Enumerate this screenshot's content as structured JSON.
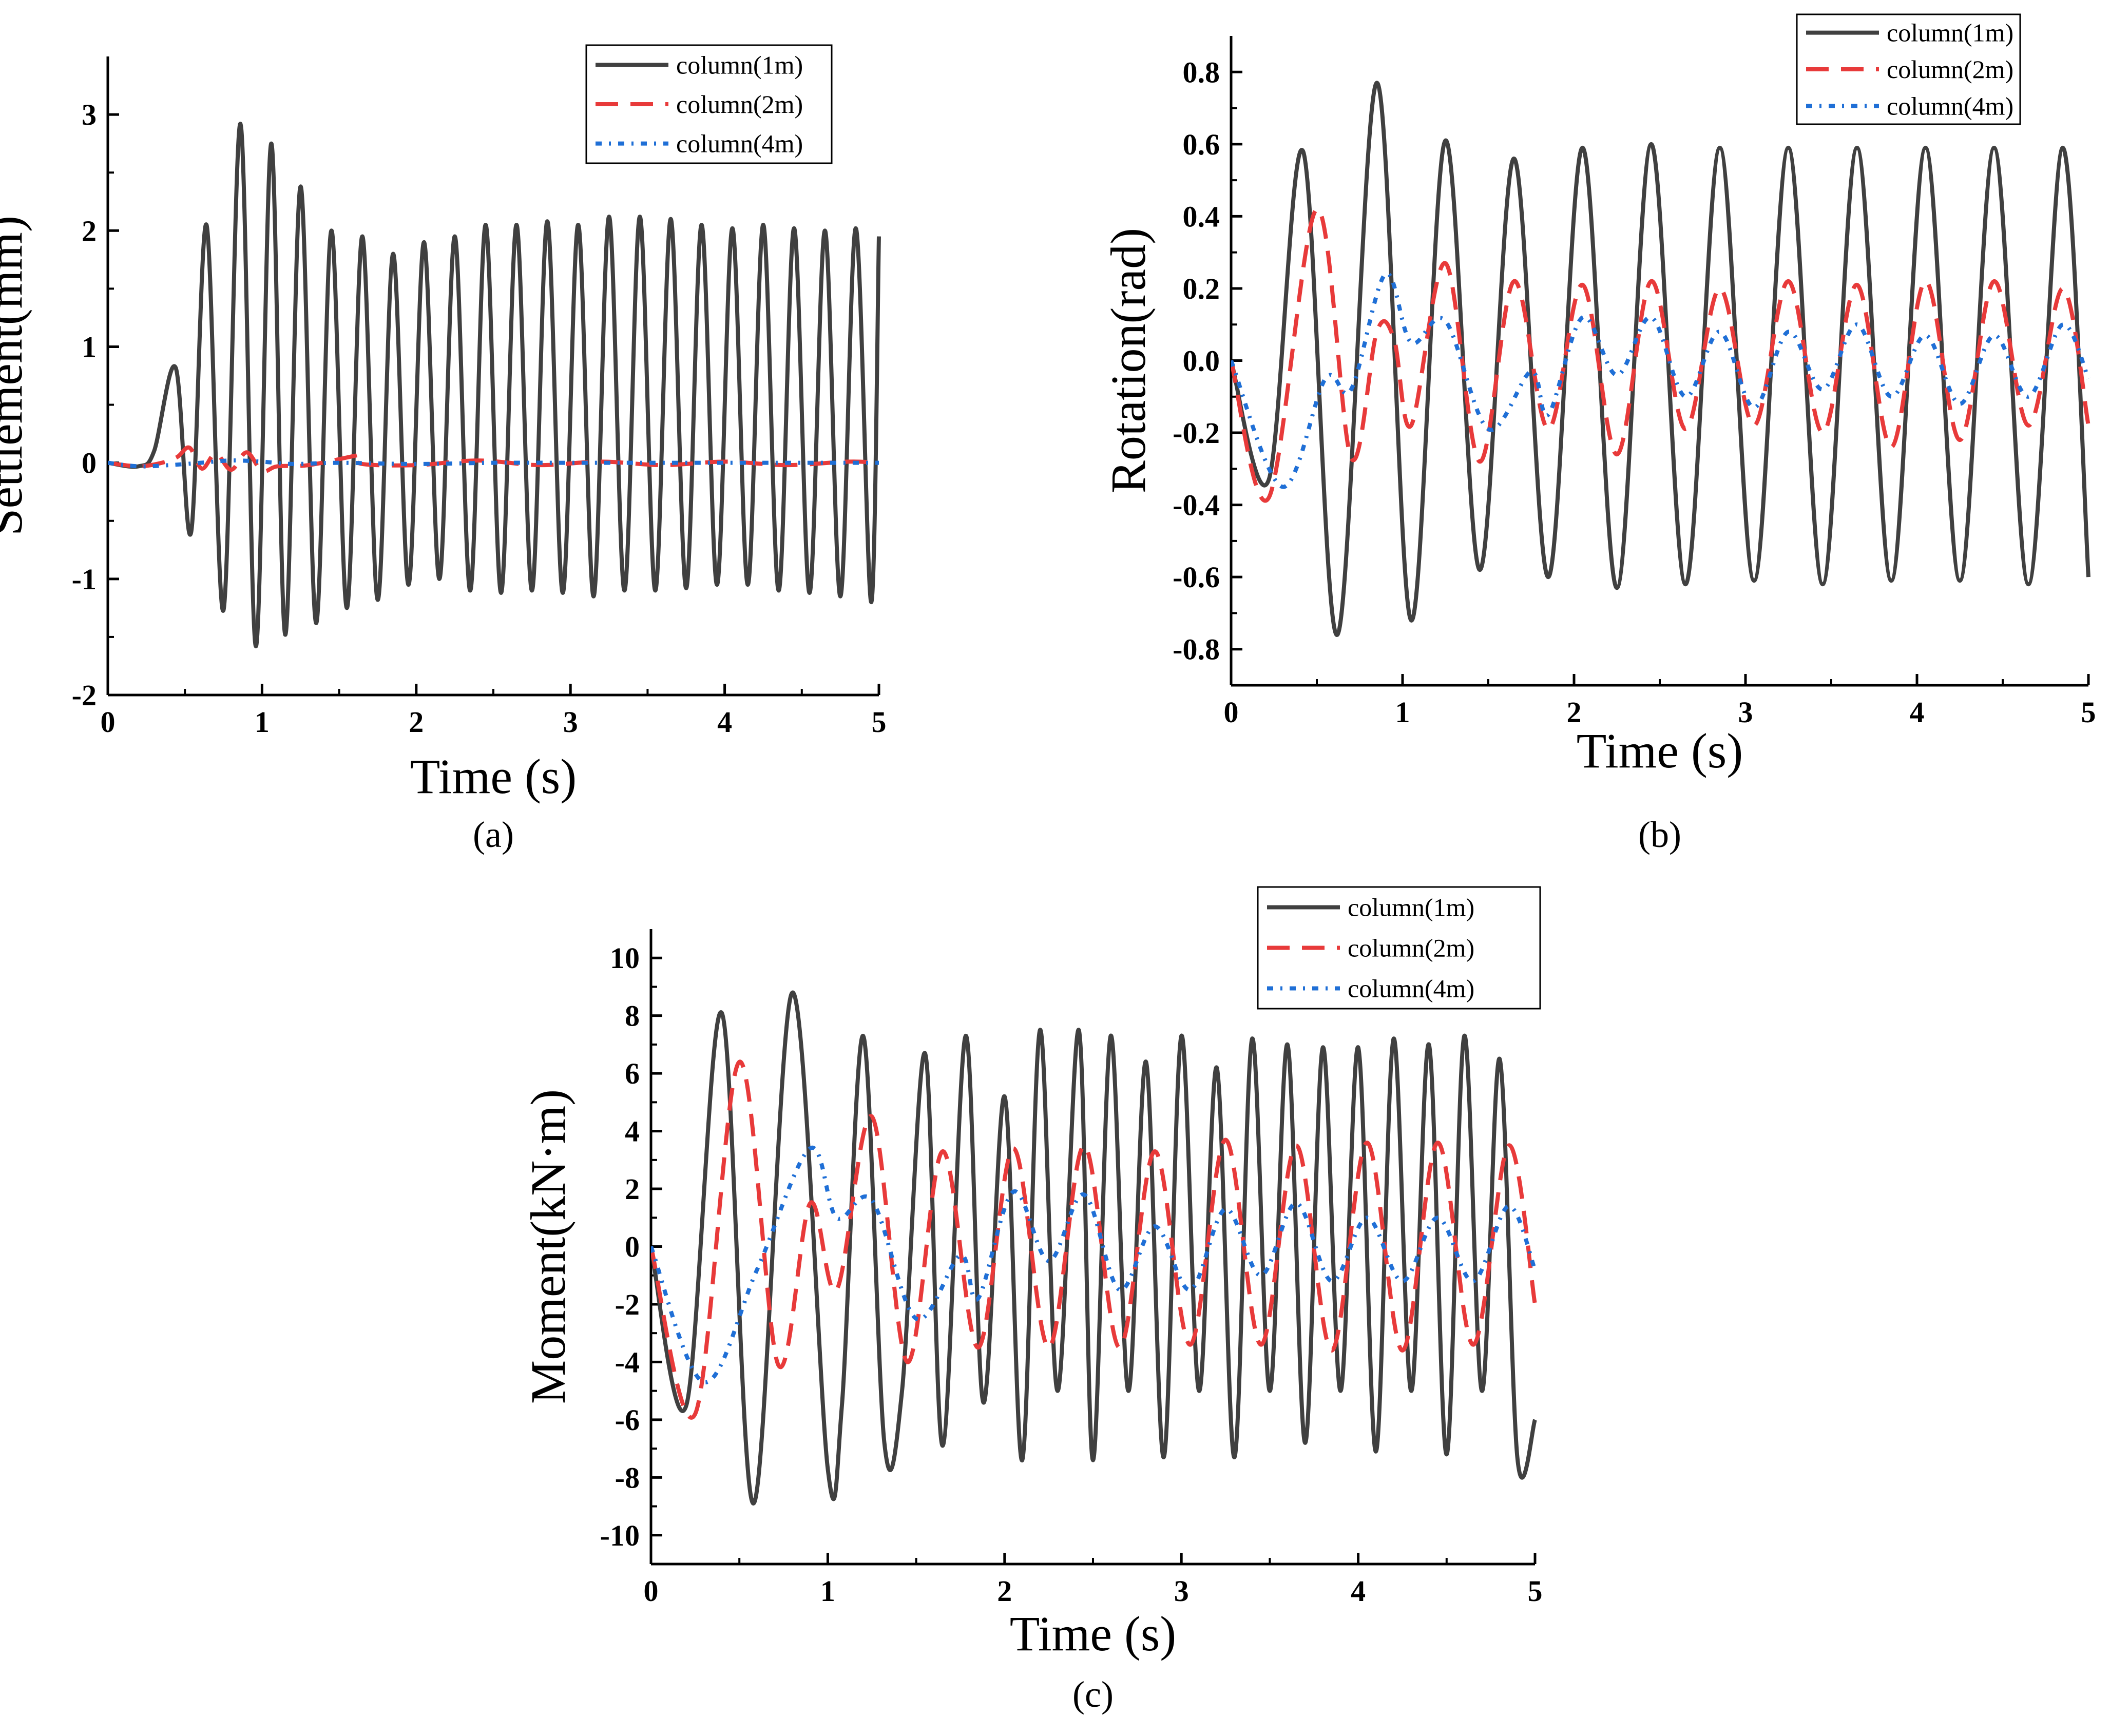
{
  "chart_data": [
    {
      "id": "a",
      "type": "line",
      "panel_label": "(a)",
      "title": "",
      "xlabel": "Time (s)",
      "ylabel": "Settlement(mm)",
      "xlim": [
        0,
        5
      ],
      "ylim": [
        -2,
        3.5
      ],
      "xticks": [
        "0",
        "1",
        "2",
        "3",
        "4",
        "5"
      ],
      "yticks": [
        "-2",
        "-1",
        "0",
        "1",
        "2",
        "3"
      ],
      "legend_position": "top-right",
      "series": [
        {
          "name": "column(1m)",
          "color": "#404040",
          "style": "solid",
          "x": [
            0,
            0.2,
            0.3,
            0.44,
            0.54,
            0.64,
            0.75,
            0.86,
            0.96,
            1.06,
            1.15,
            1.25,
            1.35,
            1.45,
            1.55,
            1.65,
            1.75,
            1.85,
            1.95,
            2.05,
            2.15,
            2.25,
            2.35,
            2.45,
            2.55,
            2.65,
            2.75,
            2.85,
            2.95,
            3.05,
            3.15,
            3.25,
            3.35,
            3.45,
            3.55,
            3.65,
            3.75,
            3.85,
            3.95,
            4.05,
            4.15,
            4.25,
            4.35,
            4.45,
            4.55,
            4.65,
            4.75,
            4.85,
            4.95,
            5.0
          ],
          "y": [
            0,
            -0.03,
            0.1,
            0.82,
            -0.6,
            2.05,
            -1.27,
            2.92,
            -1.58,
            2.75,
            -1.48,
            2.38,
            -1.38,
            2.0,
            -1.25,
            1.95,
            -1.18,
            1.8,
            -1.05,
            1.9,
            -1.0,
            1.95,
            -1.1,
            2.05,
            -1.12,
            2.05,
            -1.1,
            2.08,
            -1.12,
            2.05,
            -1.15,
            2.12,
            -1.1,
            2.12,
            -1.1,
            2.1,
            -1.08,
            2.05,
            -1.05,
            2.02,
            -1.05,
            2.05,
            -1.1,
            2.02,
            -1.12,
            2.0,
            -1.15,
            2.02,
            -1.2,
            1.95
          ]
        },
        {
          "name": "column(2m)",
          "color": "#e83a3a",
          "style": "dashed",
          "x": [
            0,
            0.2,
            0.35,
            0.45,
            0.53,
            0.61,
            0.7,
            0.8,
            0.9,
            1.0,
            1.1,
            1.3,
            1.6,
            1.6,
            1.65,
            2.0,
            2.4,
            2.8,
            3.2,
            3.6,
            4.0,
            4.4,
            4.8,
            5.0
          ],
          "y": [
            0,
            -0.03,
            0.0,
            0.05,
            0.13,
            -0.05,
            0.08,
            -0.06,
            0.09,
            -0.07,
            -0.03,
            -0.02,
            0.06,
            0.06,
            -0.01,
            -0.02,
            0.02,
            -0.02,
            0.01,
            -0.02,
            0.01,
            -0.02,
            0.01,
            0.0
          ]
        },
        {
          "name": "column(4m)",
          "color": "#1f6fd6",
          "style": "dotted",
          "x": [
            0,
            0.2,
            0.4,
            0.6,
            0.8,
            1.0,
            1.2,
            1.5,
            2.0,
            2.5,
            3.0,
            3.5,
            4.0,
            4.5,
            5.0
          ],
          "y": [
            0,
            -0.03,
            -0.02,
            0.0,
            0.02,
            0.01,
            -0.01,
            0.0,
            -0.01,
            0.0,
            0.0,
            0.0,
            0.0,
            0.0,
            0.0
          ]
        }
      ]
    },
    {
      "id": "b",
      "type": "line",
      "panel_label": "(b)",
      "title": "",
      "xlabel": "Time (s)",
      "ylabel": "Rotation(rad)",
      "xlim": [
        0,
        5
      ],
      "ylim": [
        -0.9,
        0.9
      ],
      "xticks": [
        "0",
        "1",
        "2",
        "3",
        "4",
        "5"
      ],
      "yticks": [
        "-0.8",
        "-0.6",
        "-0.4",
        "-0.2",
        "0.0",
        "0.2",
        "0.4",
        "0.6",
        "0.8"
      ],
      "legend_position": "top-right",
      "series": [
        {
          "name": "column(1m)",
          "color": "#404040",
          "style": "solid",
          "x": [
            0,
            0.22,
            0.42,
            0.62,
            0.85,
            1.05,
            1.25,
            1.45,
            1.65,
            1.85,
            2.05,
            2.25,
            2.45,
            2.65,
            2.85,
            3.05,
            3.25,
            3.45,
            3.65,
            3.85,
            4.05,
            4.25,
            4.45,
            4.65,
            4.85,
            5.0
          ],
          "y": [
            0,
            -0.33,
            0.58,
            -0.76,
            0.77,
            -0.72,
            0.61,
            -0.58,
            0.56,
            -0.6,
            0.59,
            -0.63,
            0.6,
            -0.62,
            0.59,
            -0.61,
            0.59,
            -0.62,
            0.59,
            -0.61,
            0.59,
            -0.61,
            0.59,
            -0.62,
            0.59,
            -0.6
          ]
        },
        {
          "name": "column(2m)",
          "color": "#e83a3a",
          "style": "dashed",
          "x": [
            0,
            0.22,
            0.5,
            0.7,
            0.85,
            0.95,
            1.05,
            1.25,
            1.45,
            1.65,
            1.85,
            2.05,
            2.25,
            2.45,
            2.65,
            2.85,
            3.05,
            3.25,
            3.45,
            3.65,
            3.85,
            4.05,
            4.25,
            4.45,
            4.65,
            4.85,
            5.0
          ],
          "y": [
            0,
            -0.38,
            0.42,
            -0.27,
            0.08,
            0.06,
            -0.18,
            0.27,
            -0.28,
            0.22,
            -0.19,
            0.21,
            -0.26,
            0.22,
            -0.19,
            0.2,
            -0.18,
            0.22,
            -0.2,
            0.21,
            -0.24,
            0.22,
            -0.22,
            0.22,
            -0.18,
            0.2,
            -0.18
          ]
        },
        {
          "name": "column(4m)",
          "color": "#1f6fd6",
          "style": "dotted",
          "x": [
            0,
            0.3,
            0.55,
            0.7,
            0.9,
            1.05,
            1.25,
            1.5,
            1.75,
            1.85,
            2.05,
            2.25,
            2.45,
            2.65,
            2.85,
            3.05,
            3.25,
            3.45,
            3.65,
            3.85,
            4.05,
            4.25,
            4.45,
            4.65,
            4.85,
            5.0
          ],
          "y": [
            0,
            -0.35,
            -0.05,
            -0.08,
            0.24,
            0.05,
            0.11,
            -0.19,
            -0.03,
            -0.15,
            0.12,
            -0.04,
            0.12,
            -0.1,
            0.08,
            -0.13,
            0.08,
            -0.08,
            0.1,
            -0.1,
            0.07,
            -0.12,
            0.07,
            -0.1,
            0.1,
            -0.05
          ]
        }
      ]
    },
    {
      "id": "c",
      "type": "line",
      "panel_label": "(c)",
      "title": "",
      "xlabel": "Time (s)",
      "ylabel": "Moment(kN·m)",
      "xlim": [
        0,
        5
      ],
      "ylim": [
        -11,
        11
      ],
      "xticks": [
        "0",
        "1",
        "2",
        "3",
        "4",
        "5"
      ],
      "yticks": [
        "-10",
        "-8",
        "-6",
        "-4",
        "-2",
        "0",
        "2",
        "4",
        "6",
        "8",
        "10"
      ],
      "legend_position": "top-right",
      "series": [
        {
          "name": "column(1m)",
          "color": "#404040",
          "style": "solid",
          "x": [
            0,
            0.2,
            0.4,
            0.58,
            0.8,
            1.0,
            1.08,
            1.2,
            1.32,
            1.42,
            1.55,
            1.65,
            1.78,
            1.88,
            2.0,
            2.1,
            2.2,
            2.3,
            2.42,
            2.5,
            2.6,
            2.7,
            2.8,
            2.9,
            3.0,
            3.1,
            3.2,
            3.3,
            3.4,
            3.5,
            3.6,
            3.7,
            3.8,
            3.9,
            4.0,
            4.1,
            4.2,
            4.3,
            4.4,
            4.5,
            4.6,
            4.7,
            4.8,
            4.9,
            5.0
          ],
          "y": [
            0,
            -5.5,
            8.1,
            -8.9,
            8.8,
            -7.7,
            -5.5,
            7.3,
            -6.8,
            -5.0,
            6.7,
            -6.9,
            7.3,
            -5.4,
            5.2,
            -7.4,
            7.5,
            -5.0,
            7.5,
            -7.4,
            7.3,
            -5.0,
            6.4,
            -7.3,
            7.3,
            -5.0,
            6.2,
            -7.3,
            7.2,
            -5.0,
            7.0,
            -6.8,
            6.9,
            -5.0,
            6.9,
            -7.1,
            7.2,
            -5.0,
            7.0,
            -7.2,
            7.3,
            -5.0,
            6.5,
            -7.3,
            -6.0
          ]
        },
        {
          "name": "column(2m)",
          "color": "#e83a3a",
          "style": "dashed",
          "x": [
            0,
            0.25,
            0.5,
            0.72,
            0.9,
            1.05,
            1.25,
            1.45,
            1.65,
            1.85,
            2.05,
            2.25,
            2.45,
            2.65,
            2.85,
            3.05,
            3.25,
            3.45,
            3.65,
            3.85,
            4.05,
            4.25,
            4.45,
            4.65,
            4.85,
            5.0
          ],
          "y": [
            0,
            -5.8,
            6.4,
            -4.1,
            1.5,
            -1.5,
            4.5,
            -4.0,
            3.3,
            -3.5,
            3.4,
            -3.5,
            3.5,
            -3.5,
            3.3,
            -3.4,
            3.7,
            -3.4,
            3.5,
            -3.6,
            3.6,
            -3.6,
            3.6,
            -3.4,
            3.5,
            -2.0
          ]
        },
        {
          "name": "column(4m)",
          "color": "#1f6fd6",
          "style": "dotted",
          "x": [
            0,
            0.3,
            0.6,
            0.9,
            1.05,
            1.25,
            1.5,
            1.75,
            1.85,
            2.05,
            2.25,
            2.45,
            2.65,
            2.85,
            3.05,
            3.25,
            3.45,
            3.65,
            3.85,
            4.05,
            4.25,
            4.45,
            4.65,
            4.85,
            5.0
          ],
          "y": [
            0,
            -4.7,
            -0.8,
            3.4,
            1.0,
            1.6,
            -2.5,
            -0.3,
            -1.8,
            1.9,
            -0.5,
            1.8,
            -1.5,
            0.7,
            -1.5,
            1.3,
            -1.0,
            1.5,
            -1.2,
            1.0,
            -1.2,
            1.0,
            -1.2,
            1.4,
            -0.8
          ]
        }
      ]
    }
  ]
}
